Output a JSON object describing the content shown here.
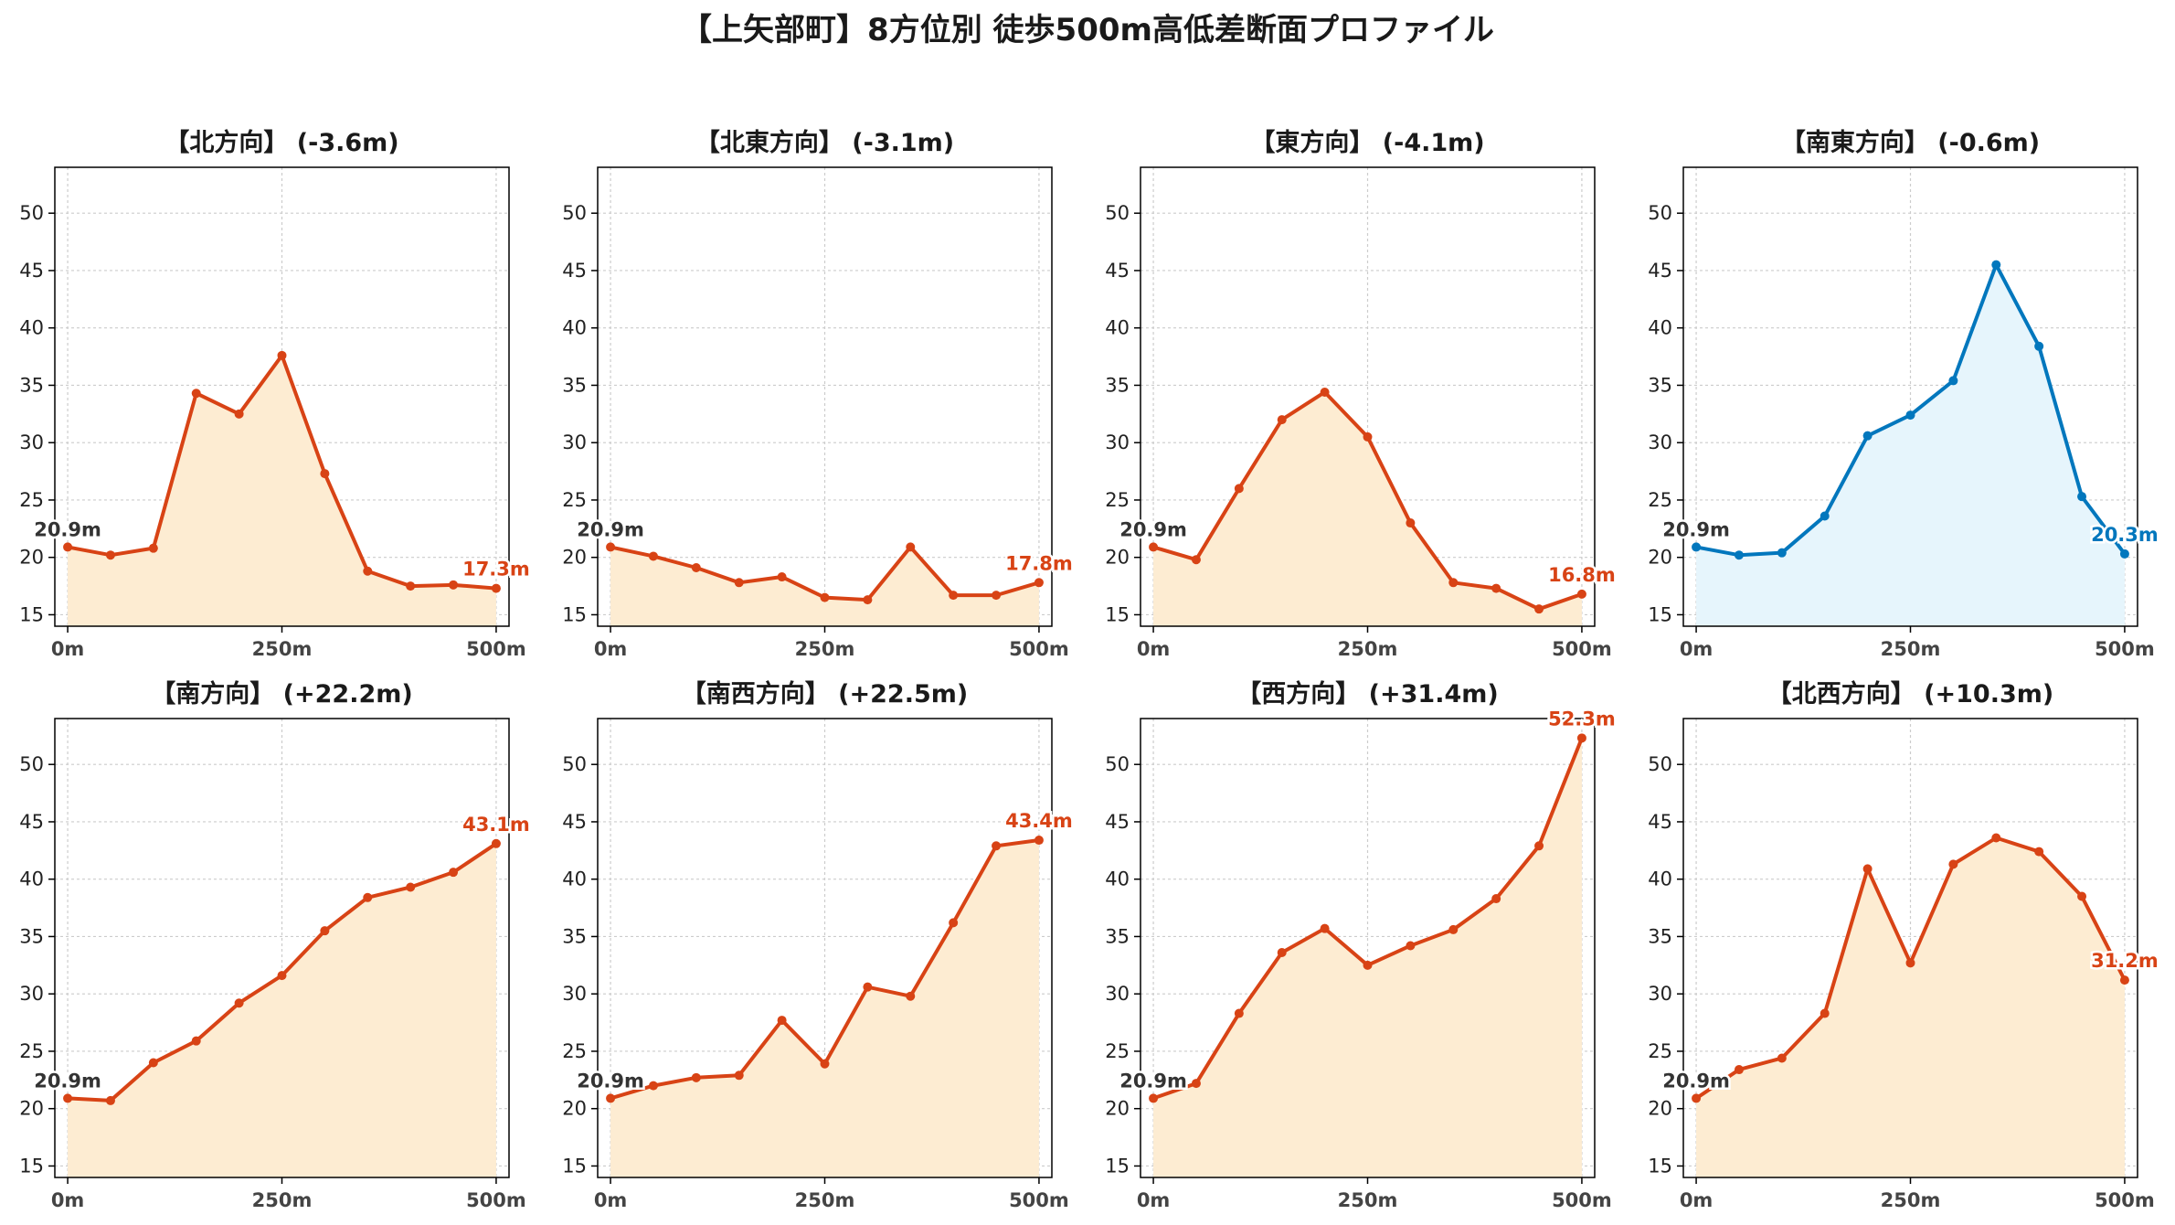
{
  "title": "【上矢部町】8方位別 徒歩500m高低差断面プロファイル",
  "colors": {
    "down_line": "#d84315",
    "down_fill": "#fdecd2",
    "up_line": "#0277bd",
    "up_fill": "#e6f5fc",
    "start_label": "#333333",
    "grid": "#cccccc"
  },
  "chart_data": [
    {
      "type": "area",
      "title": "【北方向】 (-3.6m)",
      "x": [
        0,
        50,
        100,
        150,
        200,
        250,
        300,
        350,
        400,
        450,
        500
      ],
      "y": [
        20.9,
        20.2,
        20.8,
        34.3,
        32.5,
        37.6,
        27.3,
        18.8,
        17.5,
        17.6,
        17.3
      ],
      "start_label": "20.9m",
      "end_label": "17.3m",
      "color": "down",
      "xticks": [
        "0m",
        "250m",
        "500m"
      ],
      "yticks": [
        15,
        20,
        25,
        30,
        35,
        40,
        45,
        50
      ],
      "ylim": [
        14,
        54
      ],
      "xlim": [
        -15,
        515
      ],
      "grid": true
    },
    {
      "type": "area",
      "title": "【北東方向】 (-3.1m)",
      "x": [
        0,
        50,
        100,
        150,
        200,
        250,
        300,
        350,
        400,
        450,
        500
      ],
      "y": [
        20.9,
        20.1,
        19.1,
        17.8,
        18.3,
        16.5,
        16.3,
        20.9,
        16.7,
        16.7,
        17.8
      ],
      "start_label": "20.9m",
      "end_label": "17.8m",
      "color": "down",
      "xticks": [
        "0m",
        "250m",
        "500m"
      ],
      "yticks": [
        15,
        20,
        25,
        30,
        35,
        40,
        45,
        50
      ],
      "ylim": [
        14,
        54
      ],
      "xlim": [
        -15,
        515
      ],
      "grid": true
    },
    {
      "type": "area",
      "title": "【東方向】 (-4.1m)",
      "x": [
        0,
        50,
        100,
        150,
        200,
        250,
        300,
        350,
        400,
        450,
        500
      ],
      "y": [
        20.9,
        19.8,
        26.0,
        32.0,
        34.4,
        30.5,
        23.0,
        17.8,
        17.3,
        15.5,
        16.8
      ],
      "start_label": "20.9m",
      "end_label": "16.8m",
      "color": "down",
      "xticks": [
        "0m",
        "250m",
        "500m"
      ],
      "yticks": [
        15,
        20,
        25,
        30,
        35,
        40,
        45,
        50
      ],
      "ylim": [
        14,
        54
      ],
      "xlim": [
        -15,
        515
      ],
      "grid": true
    },
    {
      "type": "area",
      "title": "【南東方向】 (-0.6m)",
      "x": [
        0,
        50,
        100,
        150,
        200,
        250,
        300,
        350,
        400,
        450,
        500
      ],
      "y": [
        20.9,
        20.2,
        20.4,
        23.6,
        30.6,
        32.4,
        35.4,
        45.5,
        38.4,
        25.3,
        20.3
      ],
      "start_label": "20.9m",
      "end_label": "20.3m",
      "color": "up",
      "xticks": [
        "0m",
        "250m",
        "500m"
      ],
      "yticks": [
        15,
        20,
        25,
        30,
        35,
        40,
        45,
        50
      ],
      "ylim": [
        14,
        54
      ],
      "xlim": [
        -15,
        515
      ],
      "grid": true
    },
    {
      "type": "area",
      "title": "【南方向】 (+22.2m)",
      "x": [
        0,
        50,
        100,
        150,
        200,
        250,
        300,
        350,
        400,
        450,
        500
      ],
      "y": [
        20.9,
        20.7,
        24.0,
        25.9,
        29.2,
        31.6,
        35.5,
        38.4,
        39.3,
        40.6,
        43.1
      ],
      "start_label": "20.9m",
      "end_label": "43.1m",
      "color": "down",
      "xticks": [
        "0m",
        "250m",
        "500m"
      ],
      "yticks": [
        15,
        20,
        25,
        30,
        35,
        40,
        45,
        50
      ],
      "ylim": [
        14,
        54
      ],
      "xlim": [
        -15,
        515
      ],
      "grid": true
    },
    {
      "type": "area",
      "title": "【南西方向】 (+22.5m)",
      "x": [
        0,
        50,
        100,
        150,
        200,
        250,
        300,
        350,
        400,
        450,
        500
      ],
      "y": [
        20.9,
        22.0,
        22.7,
        22.9,
        27.7,
        23.9,
        30.6,
        29.8,
        36.2,
        42.9,
        43.4
      ],
      "start_label": "20.9m",
      "end_label": "43.4m",
      "color": "down",
      "xticks": [
        "0m",
        "250m",
        "500m"
      ],
      "yticks": [
        15,
        20,
        25,
        30,
        35,
        40,
        45,
        50
      ],
      "ylim": [
        14,
        54
      ],
      "xlim": [
        -15,
        515
      ],
      "grid": true
    },
    {
      "type": "area",
      "title": "【西方向】 (+31.4m)",
      "x": [
        0,
        50,
        100,
        150,
        200,
        250,
        300,
        350,
        400,
        450,
        500
      ],
      "y": [
        20.9,
        22.2,
        28.3,
        33.6,
        35.7,
        32.5,
        34.2,
        35.6,
        38.3,
        42.9,
        52.3
      ],
      "start_label": "20.9m",
      "end_label": "52.3m",
      "color": "down",
      "xticks": [
        "0m",
        "250m",
        "500m"
      ],
      "yticks": [
        15,
        20,
        25,
        30,
        35,
        40,
        45,
        50
      ],
      "ylim": [
        14,
        54
      ],
      "xlim": [
        -15,
        515
      ],
      "grid": true
    },
    {
      "type": "area",
      "title": "【北西方向】 (+10.3m)",
      "x": [
        0,
        50,
        100,
        150,
        200,
        250,
        300,
        350,
        400,
        450,
        500
      ],
      "y": [
        20.9,
        23.4,
        24.4,
        28.3,
        40.9,
        32.7,
        41.3,
        43.6,
        42.4,
        38.5,
        31.2
      ],
      "start_label": "20.9m",
      "end_label": "31.2m",
      "color": "down",
      "xticks": [
        "0m",
        "250m",
        "500m"
      ],
      "yticks": [
        15,
        20,
        25,
        30,
        35,
        40,
        45,
        50
      ],
      "ylim": [
        14,
        54
      ],
      "xlim": [
        -15,
        515
      ],
      "grid": true
    }
  ]
}
